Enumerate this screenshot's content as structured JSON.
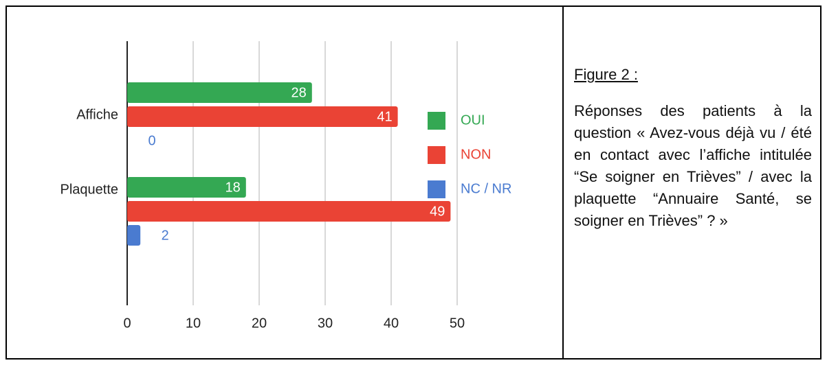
{
  "chart_data": {
    "type": "bar",
    "orientation": "horizontal",
    "categories": [
      "Affiche",
      "Plaquette"
    ],
    "series": [
      {
        "name": "OUI",
        "color": "#34a853",
        "values": [
          28,
          18
        ]
      },
      {
        "name": "NON",
        "color": "#ea4335",
        "values": [
          41,
          49
        ]
      },
      {
        "name": "NC / NR",
        "color": "#4a7bd0",
        "values": [
          0,
          2
        ]
      }
    ],
    "xlim": [
      0,
      50
    ],
    "xticks": [
      0,
      10,
      20,
      30,
      40,
      50
    ],
    "grid": true,
    "legend": "right"
  },
  "caption": {
    "heading": "Figure 2 :",
    "text": "Réponses des patients à la question « Avez-vous déjà vu / été en contact avec l’affiche intitulée “Se soigner en Trièves” / avec la plaquette “Annuaire Santé, se soigner en Trièves” ? »"
  }
}
